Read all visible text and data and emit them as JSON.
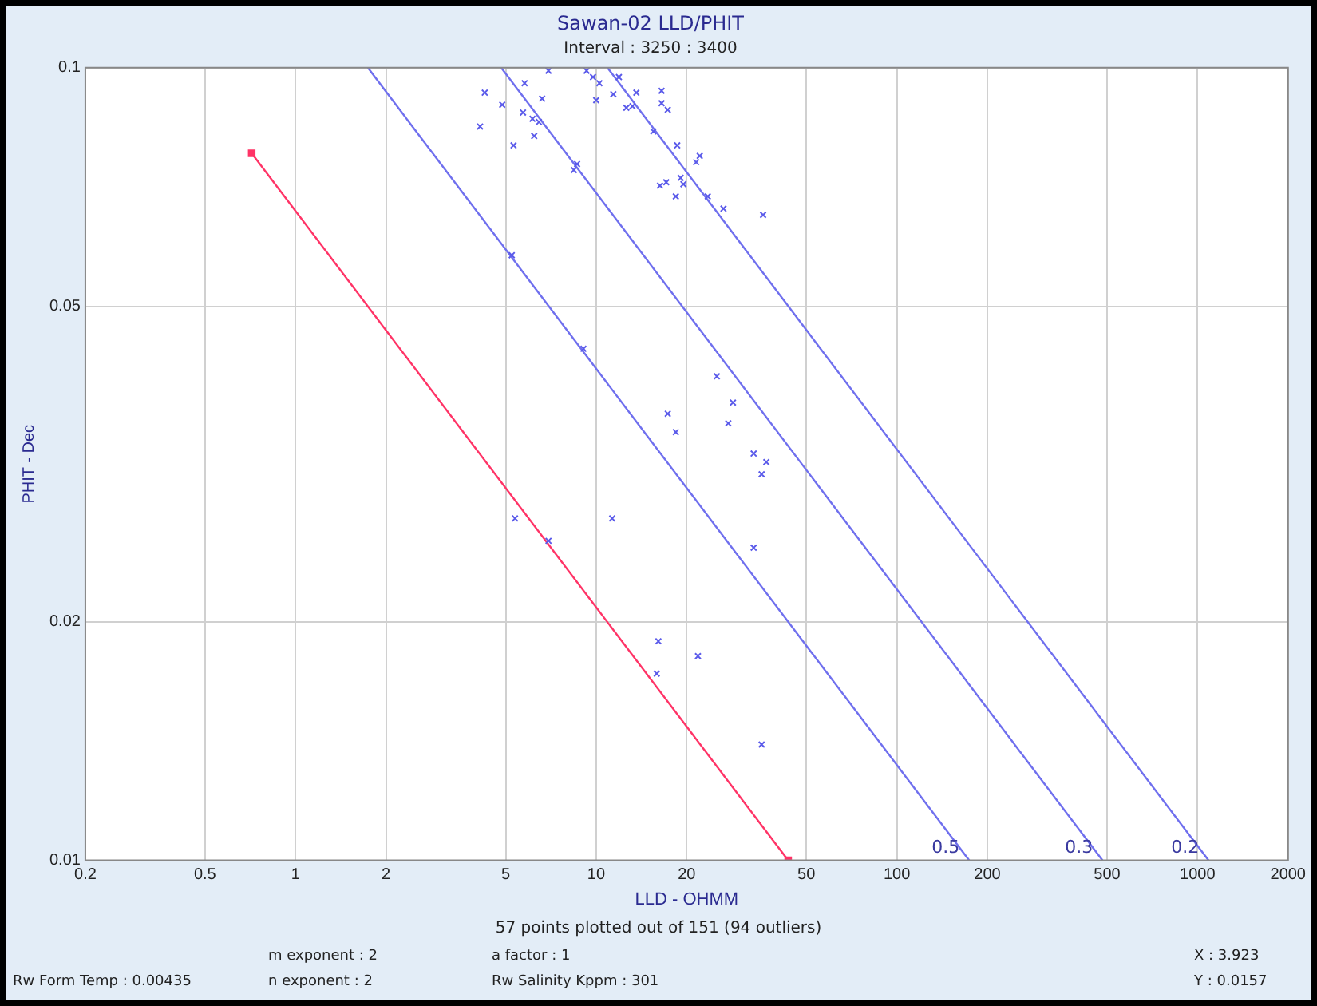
{
  "chart_data": {
    "type": "scatter",
    "title": "Sawan-02 LLD/PHIT",
    "subtitle": "Interval : 3250 : 3400",
    "xlabel": "LLD - OHMM",
    "ylabel": "PHIT - Dec",
    "log": "xy",
    "grid": true,
    "legend": false,
    "marker": "cross",
    "xlim": [
      0.2,
      2000
    ],
    "xticks": [
      0.2,
      0.5,
      1,
      2,
      5,
      10,
      20,
      50,
      100,
      200,
      500,
      1000,
      2000
    ],
    "ylim": [
      0.01,
      0.1
    ],
    "yticks": [
      0.01,
      0.02,
      0.05,
      0.1
    ],
    "series": [
      {
        "color": "#5b5bea",
        "x": [
          4.26,
          4.87,
          4.11,
          5.78,
          6.94,
          6.61,
          5.71,
          6.14,
          6.45,
          6.22,
          5.31,
          8.64,
          8.43,
          9.29,
          9.76,
          10.25,
          10.0,
          11.9,
          11.4,
          13.6,
          12.6,
          13.2,
          16.5,
          16.5,
          17.3,
          15.5,
          18.6,
          22.1,
          21.5,
          16.3,
          17.1,
          19.1,
          19.5,
          18.4,
          23.5,
          26.5,
          35.9,
          5.24,
          9.07,
          25.2,
          28.5,
          27.5,
          17.3,
          18.4,
          33.4,
          36.8,
          35.5,
          5.37,
          6.94,
          11.3,
          33.4,
          16.1,
          21.8,
          15.9,
          35.5
        ],
        "values": [
          0.093,
          0.0898,
          0.0843,
          0.0956,
          0.0991,
          0.0914,
          0.0878,
          0.0862,
          0.0854,
          0.082,
          0.0798,
          0.0756,
          0.0743,
          0.0991,
          0.0973,
          0.0956,
          0.091,
          0.0973,
          0.0926,
          0.093,
          0.089,
          0.0894,
          0.0935,
          0.0902,
          0.0885,
          0.0831,
          0.0798,
          0.0774,
          0.076,
          0.071,
          0.0717,
          0.0726,
          0.0713,
          0.0688,
          0.0688,
          0.0664,
          0.0652,
          0.058,
          0.0442,
          0.0408,
          0.0378,
          0.0356,
          0.0366,
          0.0347,
          0.0326,
          0.0318,
          0.0307,
          0.027,
          0.0253,
          0.027,
          0.0248,
          0.0189,
          0.0181,
          0.0172,
          0.014
        ]
      },
      {
        "type": "line",
        "color": "#ff3366",
        "marker": "square",
        "x": [
          0.715,
          43.5
        ],
        "values": [
          0.078,
          0.01
        ]
      },
      {
        "type": "line",
        "name": "0.5",
        "color": "#6f6fee",
        "marker": "none",
        "x": [
          1.74,
          174
        ],
        "values": [
          0.1,
          0.01
        ]
      },
      {
        "type": "line",
        "name": "0.3",
        "color": "#6f6fee",
        "marker": "none",
        "x": [
          4.83,
          483
        ],
        "values": [
          0.1,
          0.01
        ]
      },
      {
        "type": "line",
        "name": "0.2",
        "color": "#6f6fee",
        "marker": "none",
        "x": [
          10.9,
          1088
        ],
        "values": [
          0.1,
          0.01
        ]
      }
    ],
    "annotations": [
      "57 points plotted out of 151 (94 outliers)",
      "m exponent : 2",
      "a factor : 1",
      "X : 3.923",
      "Rw Form Temp : 0.00435",
      "n exponent : 2",
      "Rw Salinity Kppm : 301",
      "Y : 0.0157"
    ]
  }
}
